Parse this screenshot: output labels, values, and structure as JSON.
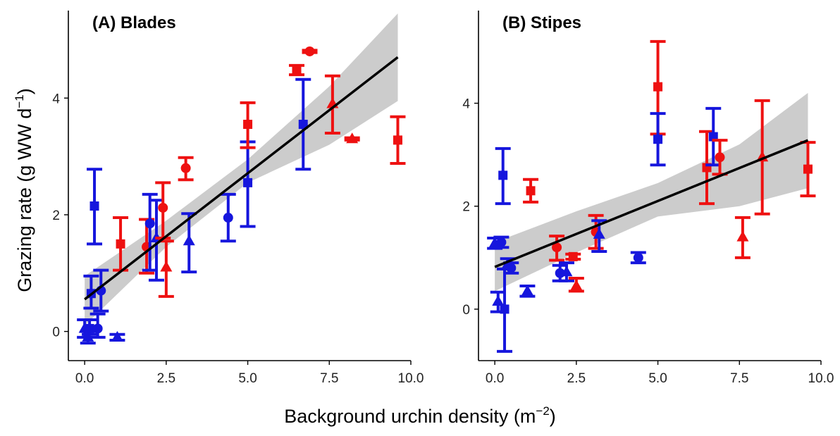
{
  "figure": {
    "xlabel_main": "Background urchin density (m",
    "xlabel_exp": "−2",
    "xlabel_close": ")",
    "ylabel_main": "Grazing rate (g WW d",
    "ylabel_exp": "−1",
    "ylabel_close": ")"
  },
  "colors": {
    "red": "#ee1111",
    "blue": "#1616dd",
    "fit": "#000000",
    "band": "#cccccc"
  },
  "chart_data": [
    {
      "type": "scatter",
      "title": "(A) Blades",
      "xlim": [
        -0.5,
        10.0
      ],
      "ylim": [
        -0.5,
        5.5
      ],
      "xticks": [
        0.0,
        2.5,
        5.0,
        7.5,
        10.0
      ],
      "xtick_labels": [
        "0.0",
        "2.5",
        "5.0",
        "7.5",
        "10.0"
      ],
      "yticks": [
        0,
        2,
        4
      ],
      "ytick_labels": [
        "0",
        "2",
        "4"
      ],
      "fit": {
        "line": [
          [
            0.0,
            0.55
          ],
          [
            9.6,
            4.7
          ]
        ],
        "band_upper": [
          [
            0.0,
            0.95
          ],
          [
            2.5,
            1.9
          ],
          [
            5.0,
            2.95
          ],
          [
            7.5,
            4.2
          ],
          [
            9.6,
            5.45
          ]
        ],
        "band_lower": [
          [
            0.0,
            0.1
          ],
          [
            2.5,
            1.45
          ],
          [
            5.0,
            2.55
          ],
          [
            7.5,
            3.2
          ],
          [
            9.6,
            3.95
          ]
        ]
      },
      "points": [
        {
          "x": 0.0,
          "y": 0.05,
          "lo": -0.1,
          "hi": 0.2,
          "color": "blue",
          "shape": "triangle"
        },
        {
          "x": 0.1,
          "y": -0.1,
          "lo": -0.2,
          "hi": 0.0,
          "color": "blue",
          "shape": "triangle"
        },
        {
          "x": 0.15,
          "y": 0.05,
          "lo": -0.05,
          "hi": 0.2,
          "color": "blue",
          "shape": "square"
        },
        {
          "x": 0.2,
          "y": 0.65,
          "lo": 0.4,
          "hi": 0.95,
          "color": "blue",
          "shape": "square"
        },
        {
          "x": 0.3,
          "y": 2.15,
          "lo": 1.5,
          "hi": 2.78,
          "color": "blue",
          "shape": "square"
        },
        {
          "x": 0.4,
          "y": 0.05,
          "lo": -0.1,
          "hi": 0.3,
          "color": "blue",
          "shape": "circle"
        },
        {
          "x": 0.5,
          "y": 0.7,
          "lo": 0.35,
          "hi": 1.05,
          "color": "blue",
          "shape": "circle"
        },
        {
          "x": 1.0,
          "y": -0.1,
          "lo": -0.15,
          "hi": -0.05,
          "color": "blue",
          "shape": "triangle"
        },
        {
          "x": 1.1,
          "y": 1.5,
          "lo": 1.05,
          "hi": 1.95,
          "color": "red",
          "shape": "square"
        },
        {
          "x": 1.9,
          "y": 1.45,
          "lo": 1.0,
          "hi": 1.92,
          "color": "red",
          "shape": "circle"
        },
        {
          "x": 2.0,
          "y": 1.85,
          "lo": 1.05,
          "hi": 2.35,
          "color": "blue",
          "shape": "circle"
        },
        {
          "x": 2.2,
          "y": 1.6,
          "lo": 0.88,
          "hi": 2.25,
          "color": "blue",
          "shape": "triangle"
        },
        {
          "x": 2.4,
          "y": 2.12,
          "lo": 1.6,
          "hi": 2.55,
          "color": "red",
          "shape": "circle"
        },
        {
          "x": 2.5,
          "y": 1.1,
          "lo": 0.6,
          "hi": 1.55,
          "color": "red",
          "shape": "triangle"
        },
        {
          "x": 3.1,
          "y": 2.8,
          "lo": 2.6,
          "hi": 2.98,
          "color": "red",
          "shape": "circle"
        },
        {
          "x": 3.2,
          "y": 1.55,
          "lo": 1.02,
          "hi": 2.02,
          "color": "blue",
          "shape": "triangle"
        },
        {
          "x": 4.4,
          "y": 1.95,
          "lo": 1.55,
          "hi": 2.35,
          "color": "blue",
          "shape": "circle"
        },
        {
          "x": 5.0,
          "y": 2.55,
          "lo": 1.8,
          "hi": 3.25,
          "color": "blue",
          "shape": "square"
        },
        {
          "x": 5.0,
          "y": 3.55,
          "lo": 3.15,
          "hi": 3.92,
          "color": "red",
          "shape": "square"
        },
        {
          "x": 6.5,
          "y": 4.48,
          "lo": 4.4,
          "hi": 4.56,
          "color": "red",
          "shape": "square"
        },
        {
          "x": 6.7,
          "y": 3.55,
          "lo": 2.78,
          "hi": 4.32,
          "color": "blue",
          "shape": "square"
        },
        {
          "x": 6.9,
          "y": 4.8,
          "lo": 4.78,
          "hi": 4.82,
          "color": "red",
          "shape": "circle"
        },
        {
          "x": 7.6,
          "y": 3.9,
          "lo": 3.4,
          "hi": 4.38,
          "color": "red",
          "shape": "triangle"
        },
        {
          "x": 8.2,
          "y": 3.3,
          "lo": 3.28,
          "hi": 3.32,
          "color": "red",
          "shape": "triangle"
        },
        {
          "x": 9.6,
          "y": 3.28,
          "lo": 2.88,
          "hi": 3.68,
          "color": "red",
          "shape": "square"
        }
      ]
    },
    {
      "type": "scatter",
      "title": "(B) Stipes",
      "xlim": [
        -0.5,
        10.0
      ],
      "ylim": [
        -1.0,
        5.8
      ],
      "xticks": [
        0.0,
        2.5,
        5.0,
        7.5,
        10.0
      ],
      "xtick_labels": [
        "0.0",
        "2.5",
        "5.0",
        "7.5",
        "10.0"
      ],
      "yticks": [
        0,
        2,
        4
      ],
      "ytick_labels": [
        "0",
        "2",
        "4"
      ],
      "fit": {
        "line": [
          [
            0.0,
            0.82
          ],
          [
            9.6,
            3.28
          ]
        ],
        "band_upper": [
          [
            0.0,
            1.3
          ],
          [
            2.5,
            1.9
          ],
          [
            5.0,
            2.45
          ],
          [
            7.5,
            3.2
          ],
          [
            9.6,
            4.2
          ]
        ],
        "band_lower": [
          [
            0.0,
            0.35
          ],
          [
            2.5,
            1.1
          ],
          [
            5.0,
            1.8
          ],
          [
            7.5,
            2.0
          ],
          [
            9.6,
            2.35
          ]
        ]
      },
      "points": [
        {
          "x": 0.0,
          "y": 1.28,
          "lo": 1.18,
          "hi": 1.38,
          "color": "blue",
          "shape": "triangle"
        },
        {
          "x": 0.1,
          "y": 0.15,
          "lo": -0.05,
          "hi": 0.33,
          "color": "blue",
          "shape": "triangle"
        },
        {
          "x": 0.2,
          "y": 1.3,
          "lo": 1.2,
          "hi": 1.4,
          "color": "blue",
          "shape": "circle"
        },
        {
          "x": 0.25,
          "y": 2.6,
          "lo": 2.05,
          "hi": 3.12,
          "color": "blue",
          "shape": "square"
        },
        {
          "x": 0.3,
          "y": 0.0,
          "lo": -0.82,
          "hi": 0.78,
          "color": "blue",
          "shape": "square"
        },
        {
          "x": 0.4,
          "y": 0.88,
          "lo": 0.78,
          "hi": 0.98,
          "color": "blue",
          "shape": "triangle"
        },
        {
          "x": 0.5,
          "y": 0.8,
          "lo": 0.7,
          "hi": 0.9,
          "color": "blue",
          "shape": "circle"
        },
        {
          "x": 1.0,
          "y": 0.35,
          "lo": 0.25,
          "hi": 0.45,
          "color": "blue",
          "shape": "triangle"
        },
        {
          "x": 1.1,
          "y": 2.3,
          "lo": 2.08,
          "hi": 2.52,
          "color": "red",
          "shape": "square"
        },
        {
          "x": 1.9,
          "y": 1.2,
          "lo": 0.95,
          "hi": 1.42,
          "color": "red",
          "shape": "circle"
        },
        {
          "x": 2.0,
          "y": 0.7,
          "lo": 0.55,
          "hi": 0.85,
          "color": "blue",
          "shape": "circle"
        },
        {
          "x": 2.2,
          "y": 0.72,
          "lo": 0.55,
          "hi": 0.9,
          "color": "blue",
          "shape": "triangle"
        },
        {
          "x": 2.4,
          "y": 1.02,
          "lo": 0.97,
          "hi": 1.07,
          "color": "red",
          "shape": "square"
        },
        {
          "x": 2.5,
          "y": 0.45,
          "lo": 0.35,
          "hi": 0.6,
          "color": "red",
          "shape": "triangle"
        },
        {
          "x": 3.1,
          "y": 1.5,
          "lo": 1.18,
          "hi": 1.82,
          "color": "red",
          "shape": "circle"
        },
        {
          "x": 3.2,
          "y": 1.45,
          "lo": 1.12,
          "hi": 1.72,
          "color": "blue",
          "shape": "triangle"
        },
        {
          "x": 4.4,
          "y": 1.0,
          "lo": 0.9,
          "hi": 1.1,
          "color": "blue",
          "shape": "circle"
        },
        {
          "x": 5.0,
          "y": 4.32,
          "lo": 3.4,
          "hi": 5.2,
          "color": "red",
          "shape": "square"
        },
        {
          "x": 5.0,
          "y": 3.3,
          "lo": 2.8,
          "hi": 3.8,
          "color": "blue",
          "shape": "square"
        },
        {
          "x": 6.5,
          "y": 2.75,
          "lo": 2.05,
          "hi": 3.45,
          "color": "red",
          "shape": "square"
        },
        {
          "x": 6.7,
          "y": 3.35,
          "lo": 2.8,
          "hi": 3.9,
          "color": "blue",
          "shape": "square"
        },
        {
          "x": 6.9,
          "y": 2.95,
          "lo": 2.62,
          "hi": 3.28,
          "color": "red",
          "shape": "circle"
        },
        {
          "x": 7.6,
          "y": 1.4,
          "lo": 1.0,
          "hi": 1.78,
          "color": "red",
          "shape": "triangle"
        },
        {
          "x": 8.2,
          "y": 2.95,
          "lo": 1.85,
          "hi": 4.05,
          "color": "red",
          "shape": "triangle"
        },
        {
          "x": 9.6,
          "y": 2.72,
          "lo": 2.2,
          "hi": 3.24,
          "color": "red",
          "shape": "square"
        }
      ]
    }
  ]
}
